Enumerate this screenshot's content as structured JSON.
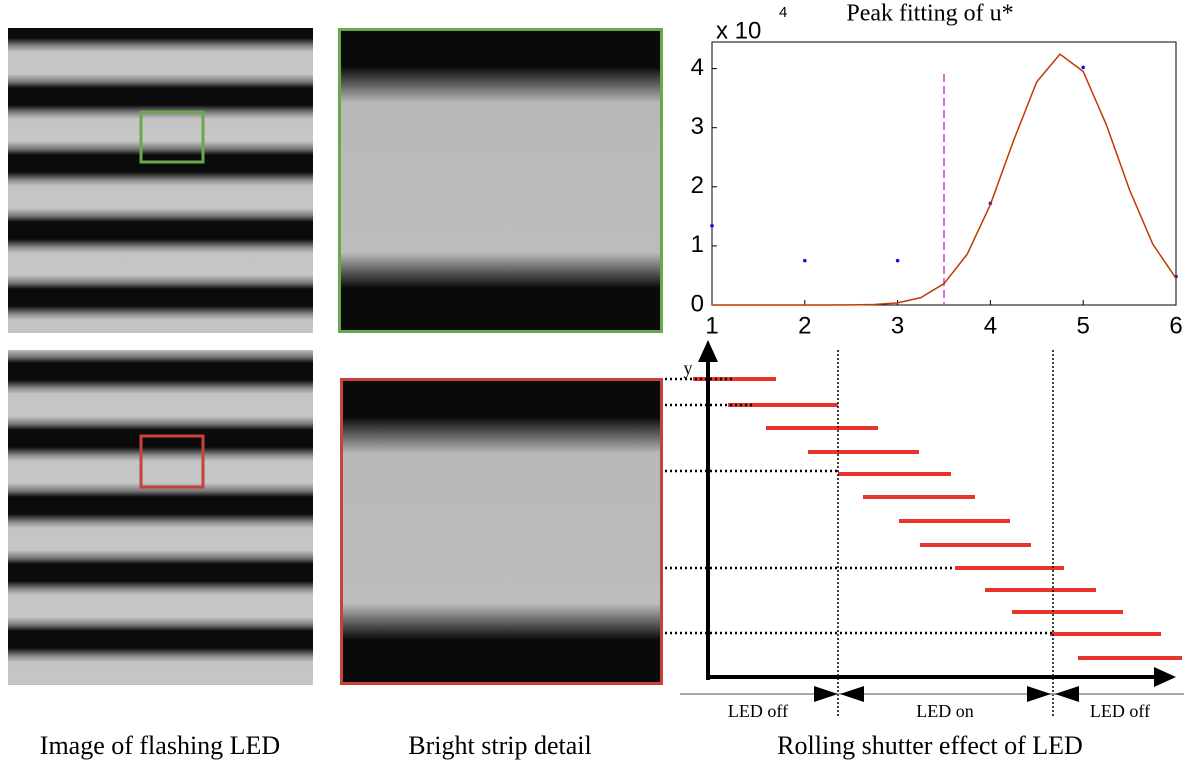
{
  "chart_data": {
    "type": "scatter",
    "title": "Peak fitting of u*",
    "multiplier": "x 10",
    "multiplier_exp": "4",
    "series": [
      {
        "color": "#1010e0",
        "x": [
          1,
          2,
          3,
          4,
          5,
          6
        ],
        "values": [
          13400,
          7500,
          7500,
          17200,
          40200,
          4800
        ]
      },
      {
        "color": "#c03a00",
        "line": true,
        "x": [
          1,
          1.25,
          1.5,
          1.75,
          2,
          2.25,
          2.5,
          2.75,
          3,
          3.25,
          3.5,
          3.75,
          4,
          4.25,
          4.5,
          4.75,
          5,
          5.25,
          5.5,
          5.75,
          6
        ],
        "values": [
          0,
          0,
          0,
          0,
          0,
          3,
          17,
          85,
          360,
          1250,
          3610,
          8600,
          17000,
          27840,
          37780,
          42440,
          39510,
          30470,
          19460,
          10300,
          4510
        ]
      }
    ],
    "vline": {
      "value": 3.5,
      "color": "#d040d0"
    },
    "xlim": [
      1,
      6
    ],
    "xticks": [
      1,
      2,
      3,
      4,
      5,
      6
    ],
    "ylim": [
      0,
      44500
    ],
    "yticks": [
      0,
      {
        "value": 10000,
        "label": "1"
      },
      {
        "value": 20000,
        "label": "2"
      },
      {
        "value": 30000,
        "label": "3"
      },
      {
        "value": 40000,
        "label": "4"
      }
    ]
  },
  "captions": [
    "Image of flashing LED",
    "Bright strip detail",
    "Rolling shutter effect of LED"
  ],
  "diagram": {
    "y_label": "y",
    "led_states": [
      "LED off",
      "LED on",
      "LED off"
    ]
  }
}
